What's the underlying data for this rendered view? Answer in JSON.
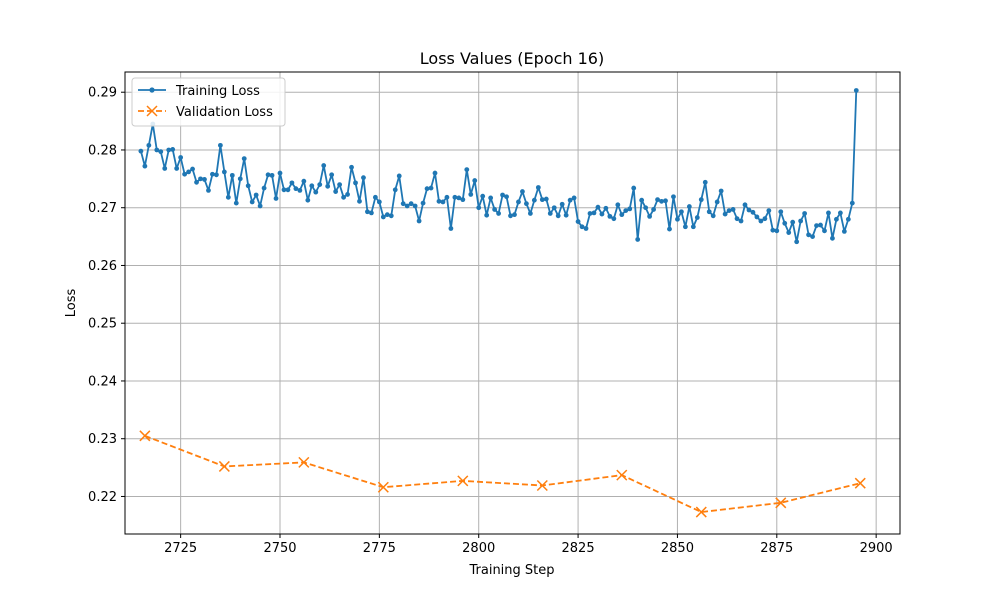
{
  "chart_data": {
    "type": "line",
    "title": "Loss Values (Epoch 16)",
    "xlabel": "Training Step",
    "ylabel": "Loss",
    "xlim": [
      2711,
      2906
    ],
    "ylim": [
      0.2135,
      0.2935
    ],
    "xticks": [
      2725,
      2750,
      2775,
      2800,
      2825,
      2850,
      2875,
      2900
    ],
    "yticks": [
      0.22,
      0.23,
      0.24,
      0.25,
      0.26,
      0.27,
      0.28,
      0.29
    ],
    "grid": true,
    "legend_position": "top-left",
    "series": [
      {
        "name": "Training Loss",
        "color": "#1f77b4",
        "line_style": "solid",
        "marker": "dot",
        "x_start": 2715,
        "values": [
          0.2798,
          0.2772,
          0.2808,
          0.2845,
          0.28,
          0.2797,
          0.2768,
          0.28,
          0.2801,
          0.2768,
          0.2787,
          0.2758,
          0.2762,
          0.2767,
          0.2744,
          0.275,
          0.2749,
          0.273,
          0.2758,
          0.2757,
          0.2808,
          0.2762,
          0.2718,
          0.2756,
          0.2708,
          0.275,
          0.2785,
          0.2738,
          0.271,
          0.2722,
          0.2703,
          0.2734,
          0.2757,
          0.2756,
          0.2716,
          0.276,
          0.2731,
          0.2731,
          0.2743,
          0.2733,
          0.273,
          0.2746,
          0.2713,
          0.2738,
          0.2727,
          0.274,
          0.2773,
          0.2737,
          0.2757,
          0.2728,
          0.274,
          0.2718,
          0.2723,
          0.277,
          0.2743,
          0.2711,
          0.2752,
          0.2693,
          0.2691,
          0.2718,
          0.271,
          0.2684,
          0.2688,
          0.2686,
          0.2731,
          0.2755,
          0.2707,
          0.2703,
          0.2707,
          0.2703,
          0.2677,
          0.2708,
          0.2733,
          0.2734,
          0.276,
          0.2711,
          0.271,
          0.2718,
          0.2664,
          0.2718,
          0.2717,
          0.2714,
          0.2766,
          0.2723,
          0.2747,
          0.27,
          0.272,
          0.2687,
          0.2717,
          0.2697,
          0.269,
          0.2722,
          0.2719,
          0.2686,
          0.2688,
          0.271,
          0.2728,
          0.2707,
          0.269,
          0.2713,
          0.2735,
          0.2714,
          0.2715,
          0.269,
          0.27,
          0.2686,
          0.2706,
          0.2687,
          0.2713,
          0.2717,
          0.2676,
          0.2667,
          0.2664,
          0.269,
          0.2691,
          0.2701,
          0.2689,
          0.2699,
          0.2685,
          0.2681,
          0.2705,
          0.2688,
          0.2695,
          0.2698,
          0.2734,
          0.2645,
          0.2713,
          0.27,
          0.2685,
          0.2697,
          0.2714,
          0.2711,
          0.2712,
          0.2663,
          0.2719,
          0.268,
          0.2693,
          0.2667,
          0.2702,
          0.2667,
          0.2683,
          0.2714,
          0.2744,
          0.2693,
          0.2686,
          0.271,
          0.2729,
          0.2689,
          0.2695,
          0.2697,
          0.2681,
          0.2677,
          0.2705,
          0.2696,
          0.2692,
          0.2684,
          0.2677,
          0.2681,
          0.2695,
          0.2661,
          0.266,
          0.2693,
          0.2673,
          0.2657,
          0.2675,
          0.2641,
          0.2677,
          0.269,
          0.2653,
          0.265,
          0.2669,
          0.267,
          0.266,
          0.2691,
          0.2647,
          0.268,
          0.2691,
          0.2659,
          0.268,
          0.2708,
          0.2903
        ]
      },
      {
        "name": "Validation Loss",
        "color": "#ff7f0e",
        "line_style": "dashed",
        "marker": "x",
        "x": [
          2716,
          2736,
          2756,
          2776,
          2796,
          2816,
          2836,
          2856,
          2876,
          2896
        ],
        "values": [
          0.2305,
          0.2252,
          0.2259,
          0.2216,
          0.2227,
          0.2219,
          0.2237,
          0.2173,
          0.2189,
          0.2223
        ]
      }
    ]
  }
}
